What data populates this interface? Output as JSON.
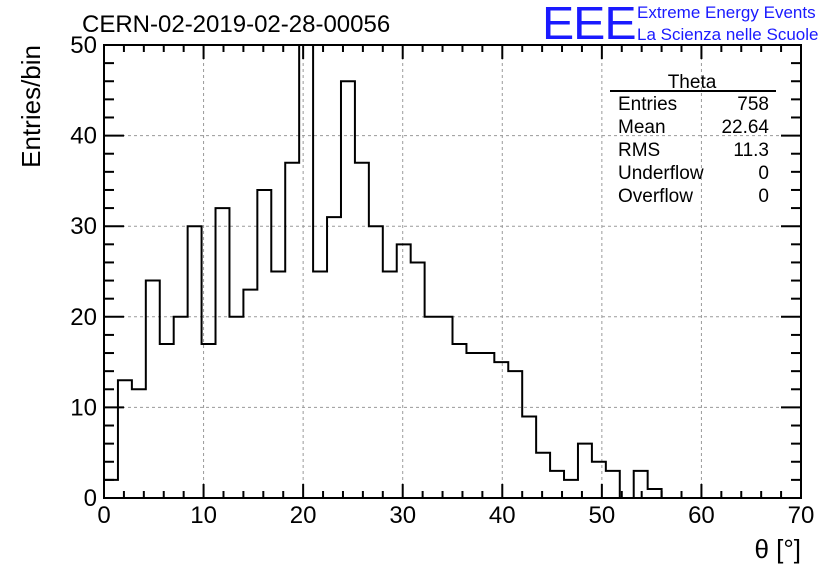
{
  "chart_data": {
    "type": "bar",
    "title": "CERN-02-2019-02-28-00056",
    "xlabel": "θ [°]",
    "ylabel": "Entries/bin",
    "xlim": [
      0,
      70
    ],
    "ylim": [
      0,
      50
    ],
    "x_ticks": [
      "0",
      "10",
      "20",
      "30",
      "40",
      "50",
      "60",
      "70"
    ],
    "y_ticks": [
      "0",
      "10",
      "20",
      "30",
      "40",
      "50"
    ],
    "grid": true,
    "bin_width": 1.4,
    "values": [
      2,
      13,
      12,
      24,
      17,
      20,
      30,
      17,
      32,
      20,
      23,
      34,
      25,
      37,
      50,
      25,
      31,
      46,
      37,
      30,
      25,
      28,
      26,
      20,
      20,
      17,
      16,
      16,
      15,
      14,
      9,
      5,
      3,
      2,
      6,
      4,
      3,
      0,
      3,
      1,
      0,
      0,
      0,
      0,
      0,
      0,
      0,
      0,
      0,
      0
    ],
    "stats_box": {
      "title": "Theta",
      "rows": [
        {
          "label": "Entries",
          "value": "758"
        },
        {
          "label": "Mean",
          "value": "22.64"
        },
        {
          "label": "RMS",
          "value": "11.3"
        },
        {
          "label": "Underflow",
          "value": "0"
        },
        {
          "label": "Overflow",
          "value": "0"
        }
      ]
    }
  },
  "logo": {
    "mark": "EEE",
    "line1": "Extreme Energy Events",
    "line2": "La Scienza nelle Scuole",
    "color": "#1a1aff"
  }
}
